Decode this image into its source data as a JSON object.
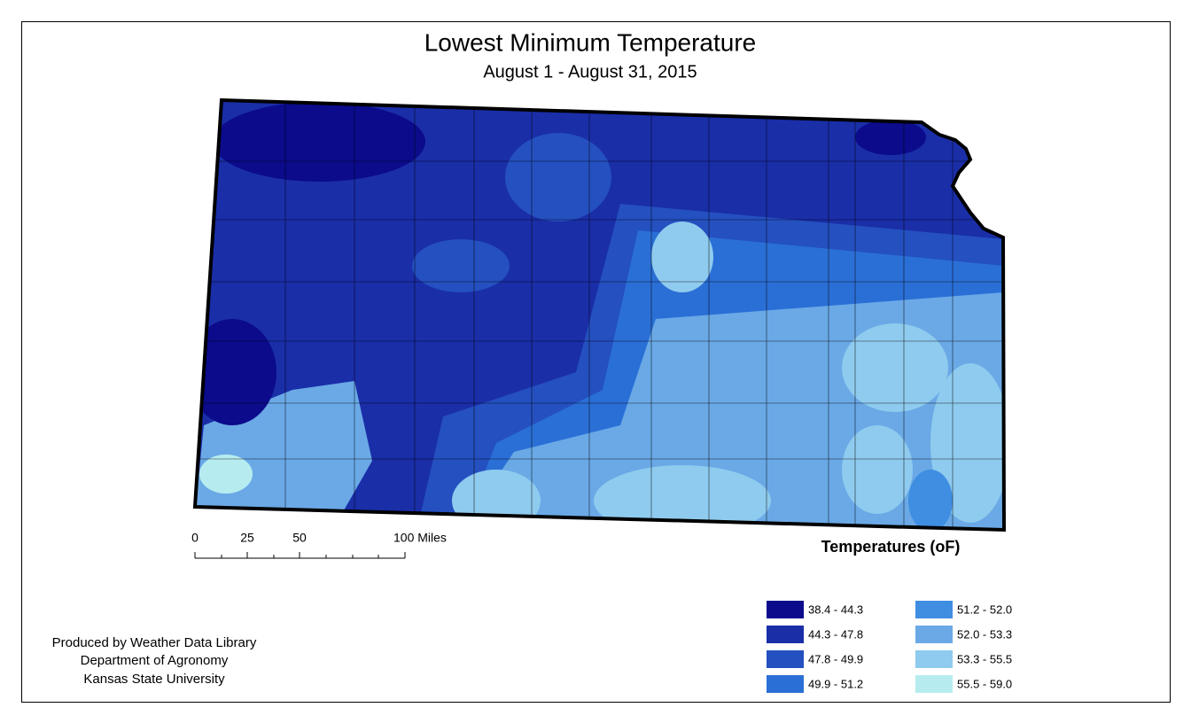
{
  "title": "Lowest Minimum Temperature",
  "subtitle": "August 1 - August 31, 2015",
  "scale_bar": {
    "labels": [
      "0",
      "25",
      "50",
      "100 Miles"
    ]
  },
  "legend": {
    "title": "Temperatures (oF)",
    "items": [
      {
        "label": "38.4 - 44.3",
        "color": "#0b0b8c"
      },
      {
        "label": "44.3 - 47.8",
        "color": "#1a2ea8"
      },
      {
        "label": "47.8 - 49.9",
        "color": "#2450c0"
      },
      {
        "label": "49.9 - 51.2",
        "color": "#2a6fd6"
      },
      {
        "label": "51.2 - 52.0",
        "color": "#3f8ee2"
      },
      {
        "label": "52.0 - 53.3",
        "color": "#6aa9e6"
      },
      {
        "label": "53.3 - 55.5",
        "color": "#8fcbee"
      },
      {
        "label": "55.5 - 59.0",
        "color": "#b6ecef"
      }
    ]
  },
  "credits": [
    "Produced by Weather Data Library",
    "Department of Agronomy",
    "Kansas State University"
  ]
}
